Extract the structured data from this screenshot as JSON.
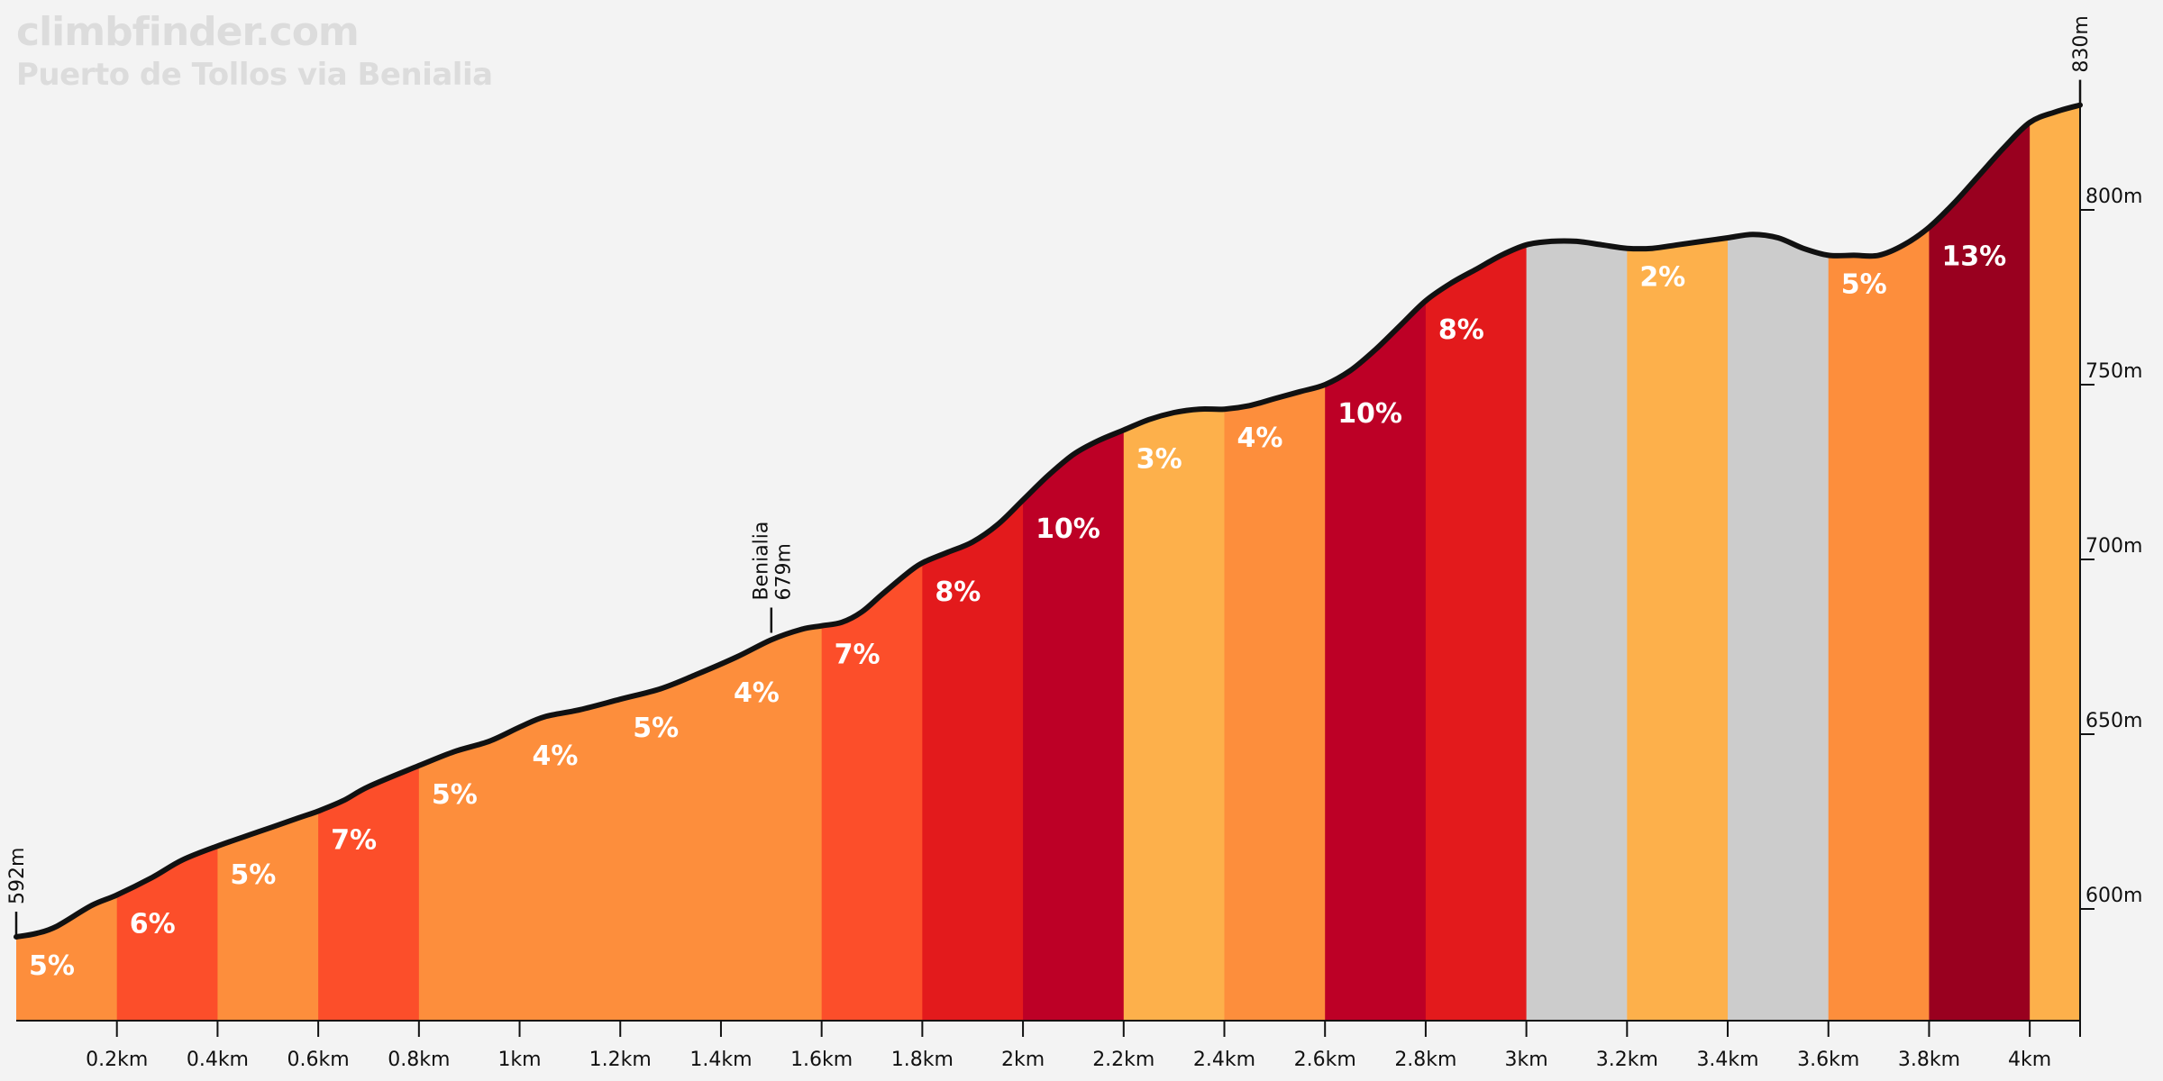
{
  "brand": {
    "site": "climbfinder.com",
    "climb": "Puerto de Tollos via Benialia"
  },
  "colors": {
    "background": "#f3f3f3",
    "profile_line": "#111111",
    "grade_colors": {
      "2": "#fdb04b",
      "3": "#fdb04b",
      "4": "#fd8e3c",
      "5": "#fd8e3c",
      "6": "#fc4e2a",
      "7": "#fc4e2a",
      "8": "#e31a1c",
      "10": "#bd0026",
      "13": "#99001f",
      "flat": "#cccccc"
    }
  },
  "chart_data": {
    "type": "area",
    "title": "Puerto de Tollos via Benialia",
    "xlabel": "",
    "ylabel": "",
    "xlim": [
      0,
      4.1
    ],
    "ylim": [
      570,
      835
    ],
    "x_ticks": [
      {
        "value": 0.2,
        "label": "0.2km"
      },
      {
        "value": 0.4,
        "label": "0.4km"
      },
      {
        "value": 0.6,
        "label": "0.6km"
      },
      {
        "value": 0.8,
        "label": "0.8km"
      },
      {
        "value": 1.0,
        "label": "1km"
      },
      {
        "value": 1.2,
        "label": "1.2km"
      },
      {
        "value": 1.4,
        "label": "1.4km"
      },
      {
        "value": 1.6,
        "label": "1.6km"
      },
      {
        "value": 1.8,
        "label": "1.8km"
      },
      {
        "value": 2.0,
        "label": "2km"
      },
      {
        "value": 2.2,
        "label": "2.2km"
      },
      {
        "value": 2.4,
        "label": "2.4km"
      },
      {
        "value": 2.6,
        "label": "2.6km"
      },
      {
        "value": 2.8,
        "label": "2.8km"
      },
      {
        "value": 3.0,
        "label": "3km"
      },
      {
        "value": 3.2,
        "label": "3.2km"
      },
      {
        "value": 3.4,
        "label": "3.4km"
      },
      {
        "value": 3.6,
        "label": "3.6km"
      },
      {
        "value": 3.8,
        "label": "3.8km"
      },
      {
        "value": 4.0,
        "label": "4km"
      }
    ],
    "y_ticks": [
      {
        "value": 600,
        "label": "600m"
      },
      {
        "value": 650,
        "label": "650m"
      },
      {
        "value": 700,
        "label": "700m"
      },
      {
        "value": 750,
        "label": "750m"
      },
      {
        "value": 800,
        "label": "800m"
      }
    ],
    "profile": [
      {
        "x": 0.0,
        "y": 592
      },
      {
        "x": 0.04,
        "y": 593
      },
      {
        "x": 0.08,
        "y": 595
      },
      {
        "x": 0.15,
        "y": 601
      },
      {
        "x": 0.2,
        "y": 604
      },
      {
        "x": 0.27,
        "y": 609
      },
      {
        "x": 0.33,
        "y": 614
      },
      {
        "x": 0.4,
        "y": 618
      },
      {
        "x": 0.48,
        "y": 622
      },
      {
        "x": 0.56,
        "y": 626
      },
      {
        "x": 0.6,
        "y": 628
      },
      {
        "x": 0.65,
        "y": 631
      },
      {
        "x": 0.7,
        "y": 635
      },
      {
        "x": 0.8,
        "y": 641
      },
      {
        "x": 0.87,
        "y": 645
      },
      {
        "x": 0.94,
        "y": 648
      },
      {
        "x": 1.0,
        "y": 652
      },
      {
        "x": 1.05,
        "y": 655
      },
      {
        "x": 1.12,
        "y": 657
      },
      {
        "x": 1.2,
        "y": 660
      },
      {
        "x": 1.28,
        "y": 663
      },
      {
        "x": 1.35,
        "y": 667
      },
      {
        "x": 1.43,
        "y": 672
      },
      {
        "x": 1.5,
        "y": 677
      },
      {
        "x": 1.56,
        "y": 680
      },
      {
        "x": 1.6,
        "y": 681
      },
      {
        "x": 1.64,
        "y": 682
      },
      {
        "x": 1.68,
        "y": 685
      },
      {
        "x": 1.72,
        "y": 690
      },
      {
        "x": 1.77,
        "y": 696
      },
      {
        "x": 1.8,
        "y": 699
      },
      {
        "x": 1.85,
        "y": 702
      },
      {
        "x": 1.9,
        "y": 705
      },
      {
        "x": 1.95,
        "y": 710
      },
      {
        "x": 2.0,
        "y": 717
      },
      {
        "x": 2.05,
        "y": 724
      },
      {
        "x": 2.1,
        "y": 730
      },
      {
        "x": 2.15,
        "y": 734
      },
      {
        "x": 2.2,
        "y": 737
      },
      {
        "x": 2.25,
        "y": 740
      },
      {
        "x": 2.3,
        "y": 742
      },
      {
        "x": 2.35,
        "y": 743
      },
      {
        "x": 2.4,
        "y": 743
      },
      {
        "x": 2.45,
        "y": 744
      },
      {
        "x": 2.5,
        "y": 746
      },
      {
        "x": 2.55,
        "y": 748
      },
      {
        "x": 2.6,
        "y": 750
      },
      {
        "x": 2.65,
        "y": 754
      },
      {
        "x": 2.7,
        "y": 760
      },
      {
        "x": 2.75,
        "y": 767
      },
      {
        "x": 2.8,
        "y": 774
      },
      {
        "x": 2.85,
        "y": 779
      },
      {
        "x": 2.9,
        "y": 783
      },
      {
        "x": 2.95,
        "y": 787
      },
      {
        "x": 3.0,
        "y": 790
      },
      {
        "x": 3.05,
        "y": 791
      },
      {
        "x": 3.1,
        "y": 791
      },
      {
        "x": 3.15,
        "y": 790
      },
      {
        "x": 3.2,
        "y": 789
      },
      {
        "x": 3.25,
        "y": 789
      },
      {
        "x": 3.3,
        "y": 790
      },
      {
        "x": 3.35,
        "y": 791
      },
      {
        "x": 3.4,
        "y": 792
      },
      {
        "x": 3.45,
        "y": 793
      },
      {
        "x": 3.5,
        "y": 792
      },
      {
        "x": 3.55,
        "y": 789
      },
      {
        "x": 3.6,
        "y": 787
      },
      {
        "x": 3.65,
        "y": 787
      },
      {
        "x": 3.7,
        "y": 787
      },
      {
        "x": 3.75,
        "y": 790
      },
      {
        "x": 3.8,
        "y": 795
      },
      {
        "x": 3.85,
        "y": 802
      },
      {
        "x": 3.9,
        "y": 810
      },
      {
        "x": 3.95,
        "y": 818
      },
      {
        "x": 4.0,
        "y": 825
      },
      {
        "x": 4.05,
        "y": 828
      },
      {
        "x": 4.1,
        "y": 830
      }
    ],
    "segments": [
      {
        "start": 0.0,
        "end": 0.2,
        "grade": "5%",
        "color": "#fd8e3c"
      },
      {
        "start": 0.2,
        "end": 0.4,
        "grade": "6%",
        "color": "#fc4e2a"
      },
      {
        "start": 0.4,
        "end": 0.6,
        "grade": "5%",
        "color": "#fd8e3c"
      },
      {
        "start": 0.6,
        "end": 0.8,
        "grade": "7%",
        "color": "#fc4e2a"
      },
      {
        "start": 0.8,
        "end": 1.0,
        "grade": "5%",
        "color": "#fd8e3c"
      },
      {
        "start": 1.0,
        "end": 1.2,
        "grade": "4%",
        "color": "#fd8e3c"
      },
      {
        "start": 1.2,
        "end": 1.4,
        "grade": "5%",
        "color": "#fd8e3c"
      },
      {
        "start": 1.4,
        "end": 1.6,
        "grade": "4%",
        "color": "#fd8e3c"
      },
      {
        "start": 1.6,
        "end": 1.8,
        "grade": "7%",
        "color": "#fc4e2a"
      },
      {
        "start": 1.8,
        "end": 2.0,
        "grade": "8%",
        "color": "#e31a1c"
      },
      {
        "start": 2.0,
        "end": 2.2,
        "grade": "10%",
        "color": "#bd0026"
      },
      {
        "start": 2.2,
        "end": 2.4,
        "grade": "3%",
        "color": "#fdb04b"
      },
      {
        "start": 2.4,
        "end": 2.6,
        "grade": "4%",
        "color": "#fd8e3c"
      },
      {
        "start": 2.6,
        "end": 2.8,
        "grade": "10%",
        "color": "#bd0026"
      },
      {
        "start": 2.8,
        "end": 3.0,
        "grade": "8%",
        "color": "#e31a1c"
      },
      {
        "start": 3.0,
        "end": 3.2,
        "grade": "",
        "color": "#cccccc"
      },
      {
        "start": 3.2,
        "end": 3.4,
        "grade": "2%",
        "color": "#fdb04b"
      },
      {
        "start": 3.4,
        "end": 3.6,
        "grade": "",
        "color": "#cccccc"
      },
      {
        "start": 3.6,
        "end": 3.8,
        "grade": "5%",
        "color": "#fd8e3c"
      },
      {
        "start": 3.8,
        "end": 4.0,
        "grade": "13%",
        "color": "#99001f"
      },
      {
        "start": 4.0,
        "end": 4.1,
        "grade": "",
        "color": "#fdb04b"
      }
    ],
    "markers": [
      {
        "x": 0.0,
        "y": 592,
        "lines": [
          "592m"
        ]
      },
      {
        "x": 1.5,
        "y": 679,
        "lines": [
          "Benialia",
          "679m"
        ]
      },
      {
        "x": 4.1,
        "y": 830,
        "lines": [
          "830m"
        ]
      }
    ]
  }
}
